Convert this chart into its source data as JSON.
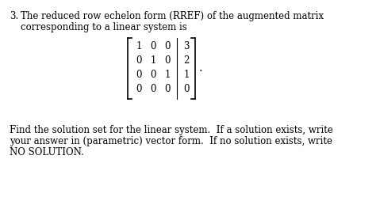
{
  "background_color": "#ffffff",
  "text_color": "#000000",
  "question_number": "3.",
  "line1": "The reduced row echelon form (RREF) of the augmented matrix",
  "line2": "corresponding to a linear system is",
  "matrix": [
    [
      "1",
      "0",
      "0",
      "3"
    ],
    [
      "0",
      "1",
      "0",
      "2"
    ],
    [
      "0",
      "0",
      "1",
      "1"
    ],
    [
      "0",
      "0",
      "0",
      "0"
    ]
  ],
  "footer_line1": "Find the solution set for the linear system.  If a solution exists, write",
  "footer_line2": "your answer in (parametric) vector form.  If no solution exists, write",
  "footer_line3": "NO SOLUTION.",
  "font_size_main": 8.5,
  "font_size_matrix": 8.5,
  "font_family": "serif"
}
